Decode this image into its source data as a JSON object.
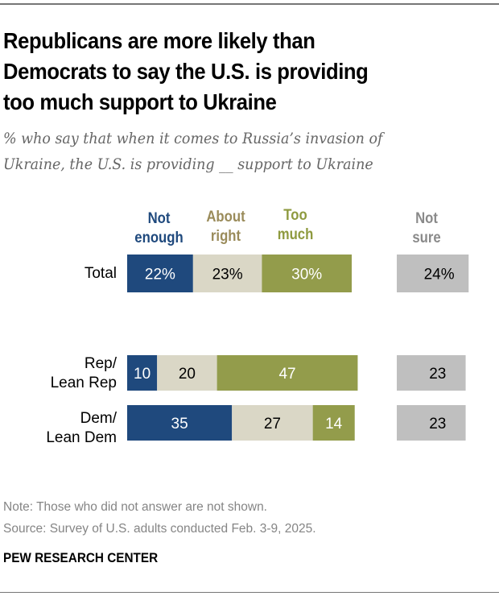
{
  "title": "Republicans are more likely than Democrats to say the U.S. is providing too much support to Ukraine",
  "title_lines": [
    "Republicans are more likely than",
    "Democrats to say the U.S. is providing",
    "too much support to Ukraine"
  ],
  "subtitle_lines": [
    "% who say that when it comes to Russia’s invasion of",
    "Ukraine, the U.S. is providing __ support to Ukraine"
  ],
  "legend": [
    {
      "line1": "Not",
      "line2": "enough",
      "color": "#1f497d"
    },
    {
      "line1": "About",
      "line2": "right",
      "color": "#9a8b5a"
    },
    {
      "line1": "Too",
      "line2": "much",
      "color": "#8e9a3f"
    },
    {
      "line1": "Not",
      "line2": "sure",
      "color": "#8a8a8a"
    }
  ],
  "chart_data": {
    "type": "bar",
    "orientation": "horizontal-stacked",
    "title": "Republicans are more likely than Democrats to say the U.S. is providing too much support to Ukraine",
    "subtitle": "% who say that when it comes to Russia’s invasion of Ukraine, the U.S. is providing __ support to Ukraine",
    "categories": [
      "Total",
      "Rep/Lean Rep",
      "Dem/Lean Dem"
    ],
    "category_label_lines": [
      [
        "Total"
      ],
      [
        "Rep/",
        "Lean Rep"
      ],
      [
        "Dem/",
        "Lean Dem"
      ]
    ],
    "series": [
      {
        "name": "Not enough",
        "values": [
          22,
          10,
          35
        ],
        "color": "#1f497d",
        "label_color": "#ffffff"
      },
      {
        "name": "About right",
        "values": [
          23,
          20,
          27
        ],
        "color": "#dad7c6",
        "label_color": "#000000"
      },
      {
        "name": "Too much",
        "values": [
          30,
          47,
          14
        ],
        "color": "#939c4b",
        "label_color": "#ffffff"
      }
    ],
    "separate_series": {
      "name": "Not sure",
      "values": [
        24,
        23,
        23
      ],
      "color": "#bfbfbf",
      "label_color": "#000000"
    },
    "data_labels": [
      [
        "22%",
        "23%",
        "30%",
        "24%"
      ],
      [
        "10",
        "20",
        "47",
        "23"
      ],
      [
        "35",
        "27",
        "14",
        "23"
      ]
    ],
    "xlabel": "",
    "ylabel": "",
    "xlim": [
      0,
      100
    ],
    "grid": false,
    "legend_position": "top"
  },
  "footer": {
    "note": "Note: Those who did not answer are not shown.",
    "source": "Source: Survey of U.S. adults conducted Feb. 3-9, 2025.",
    "brand": "PEW RESEARCH CENTER"
  }
}
